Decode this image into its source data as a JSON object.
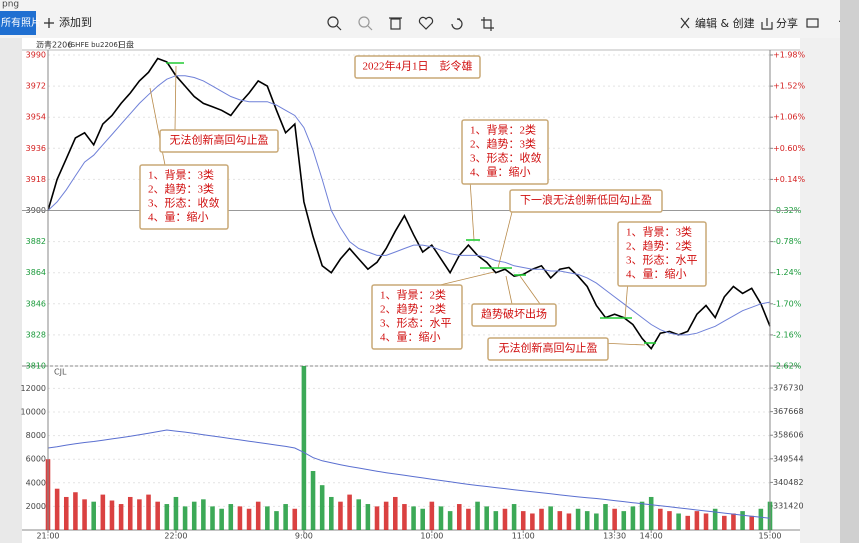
{
  "window": {
    "title": "png"
  },
  "toolbar": {
    "all_photos": "所有照片",
    "add_to": "添加到",
    "edit_create": "编辑 & 创建",
    "share": "分享"
  },
  "chart_header": {
    "symbol": "沥青2206",
    "code": "(SHFE bu2206)",
    "session": "日盘"
  },
  "chart_data": [
    {
      "type": "line",
      "xlim": [
        0,
        79
      ],
      "ylim": [
        3810,
        3990
      ],
      "yticks": [
        3990,
        3972,
        3954,
        3936,
        3918,
        3900,
        3882,
        3864,
        3846,
        3828,
        3810
      ],
      "y2lim": [
        -2.62,
        1.98
      ],
      "y2ticks": [
        {
          "value": 1.98,
          "label": "+1.98%"
        },
        {
          "value": 1.52,
          "label": "+1.52%"
        },
        {
          "value": 1.06,
          "label": "+1.06%"
        },
        {
          "value": 0.6,
          "label": "+0.60%"
        },
        {
          "value": 0.14,
          "label": "+0.14%"
        },
        {
          "value": -0.32,
          "label": "-0.32%"
        },
        {
          "value": -0.78,
          "label": "-0.78%"
        },
        {
          "value": -1.24,
          "label": "-1.24%"
        },
        {
          "value": -1.7,
          "label": "-1.70%"
        },
        {
          "value": -2.16,
          "label": "-2.16%"
        },
        {
          "value": -2.62,
          "label": "-2.62%"
        }
      ],
      "reference_line": 3900,
      "up_color": "#d42020",
      "down_color": "#1a9a3a",
      "grid": true,
      "series": [
        {
          "color": "#000000",
          "values": [
            3900,
            3918,
            3930,
            3942,
            3945,
            3938,
            3950,
            3955,
            3962,
            3968,
            3975,
            3980,
            3988,
            3986,
            3978,
            3972,
            3966,
            3962,
            3960,
            3958,
            3955,
            3962,
            3968,
            3975,
            3972,
            3958,
            3945,
            3950,
            3905,
            3885,
            3868,
            3864,
            3872,
            3878,
            3872,
            3866,
            3870,
            3878,
            3888,
            3897,
            3886,
            3876,
            3880,
            3872,
            3864,
            3874,
            3880,
            3874,
            3870,
            3864,
            3866,
            3862,
            3863,
            3866,
            3868,
            3861,
            3866,
            3867,
            3862,
            3856,
            3845,
            3838,
            3840,
            3838,
            3834,
            3826,
            3820,
            3829,
            3830,
            3828,
            3830,
            3840,
            3845,
            3838,
            3850,
            3856,
            3852,
            3855,
            3846,
            3833
          ]
        },
        {
          "color": "#6f80d8",
          "values": [
            3900,
            3905,
            3912,
            3920,
            3928,
            3932,
            3938,
            3944,
            3950,
            3956,
            3962,
            3967,
            3972,
            3976,
            3978,
            3978,
            3977,
            3975,
            3972,
            3969,
            3966,
            3964,
            3963,
            3963,
            3963,
            3961,
            3958,
            3955,
            3948,
            3935,
            3918,
            3900,
            3890,
            3882,
            3878,
            3876,
            3874,
            3874,
            3876,
            3878,
            3880,
            3880,
            3879,
            3877,
            3875,
            3874,
            3874,
            3874,
            3873,
            3871,
            3870,
            3868,
            3867,
            3866,
            3866,
            3865,
            3865,
            3864,
            3863,
            3861,
            3858,
            3854,
            3850,
            3846,
            3842,
            3838,
            3834,
            3831,
            3829,
            3828,
            3828,
            3829,
            3831,
            3833,
            3836,
            3839,
            3842,
            3844,
            3846,
            3847
          ]
        }
      ],
      "annotations": [
        {
          "lines": [
            "2022年4月1日　彭令雄"
          ]
        },
        {
          "lines": [
            "无法创新高回勾止盈"
          ]
        },
        {
          "lines": [
            "1、背景：3类",
            "2、趋势：3类",
            "3、形态：收敛",
            "4、量：缩小"
          ]
        },
        {
          "lines": [
            "1、背景：2类",
            "2、趋势：3类",
            "3、形态：收敛",
            "4、量：缩小"
          ]
        },
        {
          "lines": [
            "下一浪无法创新低回勾止盈"
          ]
        },
        {
          "lines": [
            "1、背景：3类",
            "2、趋势：2类",
            "3、形态：水平",
            "4、量：缩小"
          ]
        },
        {
          "lines": [
            "1、背景：2类",
            "2、趋势：2类",
            "3、形态：水平",
            "4、量：缩小"
          ]
        },
        {
          "lines": [
            "趋势破坏出场"
          ]
        },
        {
          "lines": [
            "无法创新高回勾止盈"
          ]
        }
      ]
    },
    {
      "type": "bar",
      "label": "CJL",
      "xlim": [
        0,
        79
      ],
      "xticks": [
        {
          "value": 0,
          "label": "21:00"
        },
        {
          "value": 14,
          "label": "22:00"
        },
        {
          "value": 28,
          "label": "9:00"
        },
        {
          "value": 42,
          "label": "10:00"
        },
        {
          "value": 52,
          "label": "11:00"
        },
        {
          "value": 62,
          "label": "13:30"
        },
        {
          "value": 66,
          "label": "14:00"
        },
        {
          "value": 79,
          "label": "15:00"
        }
      ],
      "ylim": [
        0,
        13900
      ],
      "yticks": [
        12000,
        10000,
        8000,
        6000,
        4000,
        2000
      ],
      "y2lim": [
        322200,
        385200
      ],
      "y2ticks": [
        376730,
        367668,
        358606,
        349544,
        340482,
        331420
      ],
      "values": [
        6000,
        3500,
        2800,
        3200,
        2600,
        2400,
        3000,
        2500,
        2200,
        2800,
        2600,
        3000,
        2400,
        2200,
        2800,
        2000,
        2400,
        2600,
        2000,
        1800,
        2200,
        2000,
        1800,
        2400,
        2000,
        1600,
        2200,
        1800,
        13900,
        5000,
        3800,
        2800,
        2400,
        3000,
        2600,
        2200,
        2000,
        2400,
        2800,
        2200,
        2000,
        1800,
        2400,
        2000,
        1600,
        2200,
        1800,
        2400,
        2000,
        1600,
        1800,
        2200,
        1600,
        1400,
        1800,
        2000,
        1600,
        1400,
        1800,
        1600,
        1400,
        2200,
        1800,
        1600,
        2000,
        2400,
        2800,
        1800,
        1600,
        1400,
        1200,
        1600,
        1400,
        1800,
        1200,
        1400,
        1600,
        1200,
        1800,
        2400
      ],
      "series": [
        {
          "axis": "y2",
          "color": "#5a6fd0",
          "values": [
            353700,
            354200,
            354800,
            355300,
            355800,
            356200,
            356700,
            357200,
            357700,
            358200,
            358800,
            359400,
            360000,
            360600,
            360200,
            359800,
            359300,
            358800,
            358300,
            357800,
            357300,
            356800,
            356300,
            355800,
            355300,
            354800,
            354300,
            353700,
            352000,
            350000,
            348800,
            348000,
            347300,
            346600,
            346000,
            345400,
            344800,
            344200,
            343700,
            343200,
            342700,
            342200,
            341700,
            341200,
            340700,
            340200,
            339700,
            339300,
            338900,
            338500,
            338100,
            337700,
            337300,
            336900,
            336500,
            336100,
            335700,
            335300,
            334900,
            334600,
            334300,
            333900,
            333500,
            333100,
            332700,
            332300,
            331900,
            331500,
            331100,
            330700,
            330300,
            329900,
            329500,
            329100,
            328700,
            328300,
            327900,
            327500,
            327100,
            326700
          ]
        }
      ]
    }
  ]
}
